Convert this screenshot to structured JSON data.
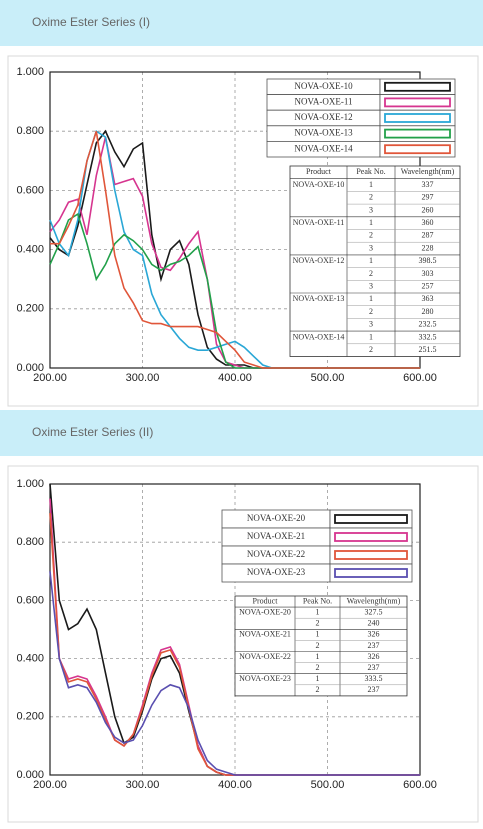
{
  "headers": [
    "Oxime Ester Series (I)",
    "Oxime Ester Series (II)"
  ],
  "chart_data": [
    {
      "type": "line",
      "x": [
        200,
        210,
        220,
        230,
        240,
        250,
        260,
        270,
        280,
        290,
        300,
        310,
        320,
        330,
        340,
        350,
        360,
        370,
        380,
        390,
        400,
        410,
        420,
        430,
        440,
        450,
        500,
        550,
        600
      ],
      "xlim": [
        200,
        600
      ],
      "ylim": [
        0,
        1
      ],
      "xticks": [
        {
          "value": 200,
          "label": "200.00"
        },
        {
          "value": 300,
          "label": "300.00"
        },
        {
          "value": 400,
          "label": "400.00"
        },
        {
          "value": 500,
          "label": "500.00"
        },
        {
          "value": 600,
          "label": "600.00"
        }
      ],
      "yticks": [
        {
          "value": 0,
          "label": "0.000"
        },
        {
          "value": 0.2,
          "label": "0.200"
        },
        {
          "value": 0.4,
          "label": "0.400"
        },
        {
          "value": 0.6,
          "label": "0.600"
        },
        {
          "value": 0.8,
          "label": "0.800"
        },
        {
          "value": 1,
          "label": "1.000"
        }
      ],
      "grid": true,
      "series": [
        {
          "name": "NOVA-OXE-10",
          "color": "#1a1a1a",
          "values": [
            0.44,
            0.4,
            0.38,
            0.48,
            0.62,
            0.76,
            0.8,
            0.73,
            0.68,
            0.74,
            0.76,
            0.45,
            0.3,
            0.4,
            0.43,
            0.35,
            0.18,
            0.07,
            0.03,
            0.01,
            0.01,
            0.01,
            0,
            0,
            0,
            0,
            0,
            0,
            0
          ]
        },
        {
          "name": "NOVA-OXE-11",
          "color": "#d6358f",
          "values": [
            0.46,
            0.5,
            0.56,
            0.57,
            0.45,
            0.65,
            0.78,
            0.62,
            0.63,
            0.64,
            0.58,
            0.42,
            0.34,
            0.33,
            0.37,
            0.42,
            0.46,
            0.3,
            0.08,
            0.02,
            0.01,
            0,
            0,
            0,
            0,
            0,
            0,
            0,
            0
          ]
        },
        {
          "name": "NOVA-OXE-12",
          "color": "#2aa7d6",
          "values": [
            0.5,
            0.42,
            0.38,
            0.5,
            0.7,
            0.8,
            0.78,
            0.6,
            0.46,
            0.4,
            0.38,
            0.25,
            0.18,
            0.14,
            0.1,
            0.07,
            0.06,
            0.06,
            0.07,
            0.08,
            0.09,
            0.07,
            0.04,
            0.01,
            0,
            0,
            0,
            0,
            0
          ]
        },
        {
          "name": "NOVA-OXE-13",
          "color": "#22a04a",
          "values": [
            0.35,
            0.42,
            0.5,
            0.52,
            0.42,
            0.3,
            0.35,
            0.42,
            0.45,
            0.43,
            0.4,
            0.35,
            0.33,
            0.35,
            0.36,
            0.38,
            0.41,
            0.3,
            0.12,
            0.02,
            0,
            0,
            0,
            0,
            0,
            0,
            0,
            0,
            0
          ]
        },
        {
          "name": "NOVA-OXE-14",
          "color": "#e0563a",
          "values": [
            0.42,
            0.42,
            0.48,
            0.55,
            0.7,
            0.8,
            0.6,
            0.38,
            0.27,
            0.22,
            0.16,
            0.15,
            0.15,
            0.14,
            0.14,
            0.14,
            0.14,
            0.13,
            0.12,
            0.09,
            0.06,
            0.02,
            0.01,
            0,
            0,
            0,
            0,
            0,
            0
          ]
        }
      ],
      "table": {
        "columns": [
          "Product",
          "Peak No.",
          "Wavelength(nm)"
        ],
        "groups": [
          {
            "product": "NOVA-OXE-10",
            "peaks": [
              {
                "no": 1,
                "wavelength": 337
              },
              {
                "no": 2,
                "wavelength": 297
              },
              {
                "no": 3,
                "wavelength": 260
              }
            ]
          },
          {
            "product": "NOVA-OXE-11",
            "peaks": [
              {
                "no": 1,
                "wavelength": 360
              },
              {
                "no": 2,
                "wavelength": 287
              },
              {
                "no": 3,
                "wavelength": 228
              }
            ]
          },
          {
            "product": "NOVA-OXE-12",
            "peaks": [
              {
                "no": 1,
                "wavelength": 398.5
              },
              {
                "no": 2,
                "wavelength": 303
              },
              {
                "no": 3,
                "wavelength": 257
              }
            ]
          },
          {
            "product": "NOVA-OXE-13",
            "peaks": [
              {
                "no": 1,
                "wavelength": 363
              },
              {
                "no": 2,
                "wavelength": 280
              },
              {
                "no": 3,
                "wavelength": 232.5
              }
            ]
          },
          {
            "product": "NOVA-OXE-14",
            "peaks": [
              {
                "no": 1,
                "wavelength": 332.5
              },
              {
                "no": 2,
                "wavelength": 251.5
              }
            ]
          }
        ]
      }
    },
    {
      "type": "line",
      "x": [
        200,
        210,
        220,
        230,
        240,
        250,
        260,
        270,
        280,
        290,
        300,
        310,
        320,
        330,
        340,
        350,
        360,
        370,
        380,
        390,
        400,
        450,
        500,
        550,
        600
      ],
      "xlim": [
        200,
        600
      ],
      "ylim": [
        0,
        1
      ],
      "xticks": [
        {
          "value": 200,
          "label": "200.00"
        },
        {
          "value": 300,
          "label": "300.00"
        },
        {
          "value": 400,
          "label": "400.00"
        },
        {
          "value": 500,
          "label": "500.00"
        },
        {
          "value": 600,
          "label": "600.00"
        }
      ],
      "yticks": [
        {
          "value": 0,
          "label": "0.000"
        },
        {
          "value": 0.2,
          "label": "0.200"
        },
        {
          "value": 0.4,
          "label": "0.400"
        },
        {
          "value": 0.6,
          "label": "0.600"
        },
        {
          "value": 0.8,
          "label": "0.800"
        },
        {
          "value": 1,
          "label": "1.000"
        }
      ],
      "grid": true,
      "series": [
        {
          "name": "NOVA-OXE-20",
          "color": "#1a1a1a",
          "values": [
            1.0,
            0.6,
            0.5,
            0.52,
            0.57,
            0.5,
            0.35,
            0.2,
            0.11,
            0.13,
            0.22,
            0.33,
            0.4,
            0.41,
            0.35,
            0.22,
            0.1,
            0.03,
            0.01,
            0,
            0,
            0,
            0,
            0,
            0
          ]
        },
        {
          "name": "NOVA-OXE-21",
          "color": "#d6358f",
          "values": [
            0.95,
            0.4,
            0.33,
            0.34,
            0.33,
            0.27,
            0.2,
            0.12,
            0.1,
            0.14,
            0.24,
            0.35,
            0.43,
            0.44,
            0.38,
            0.24,
            0.1,
            0.03,
            0.01,
            0,
            0,
            0,
            0,
            0,
            0
          ]
        },
        {
          "name": "NOVA-OXE-22",
          "color": "#e0563a",
          "values": [
            0.9,
            0.4,
            0.32,
            0.33,
            0.32,
            0.26,
            0.19,
            0.12,
            0.1,
            0.14,
            0.23,
            0.34,
            0.42,
            0.43,
            0.37,
            0.23,
            0.09,
            0.03,
            0.01,
            0,
            0,
            0,
            0,
            0,
            0
          ]
        },
        {
          "name": "NOVA-OXE-23",
          "color": "#5a4fb0",
          "values": [
            0.7,
            0.4,
            0.3,
            0.31,
            0.3,
            0.25,
            0.18,
            0.13,
            0.11,
            0.12,
            0.17,
            0.24,
            0.29,
            0.31,
            0.3,
            0.23,
            0.12,
            0.05,
            0.02,
            0.01,
            0,
            0,
            0,
            0,
            0
          ]
        }
      ],
      "table": {
        "columns": [
          "Product",
          "Peak No.",
          "Wavelength(nm)"
        ],
        "groups": [
          {
            "product": "NOVA-OXE-20",
            "peaks": [
              {
                "no": 1,
                "wavelength": 327.5
              },
              {
                "no": 2,
                "wavelength": 240
              }
            ]
          },
          {
            "product": "NOVA-OXE-21",
            "peaks": [
              {
                "no": 1,
                "wavelength": 326
              },
              {
                "no": 2,
                "wavelength": 237
              }
            ]
          },
          {
            "product": "NOVA-OXE-22",
            "peaks": [
              {
                "no": 1,
                "wavelength": 326
              },
              {
                "no": 2,
                "wavelength": 237
              }
            ]
          },
          {
            "product": "NOVA-OXE-23",
            "peaks": [
              {
                "no": 1,
                "wavelength": 333.5
              },
              {
                "no": 2,
                "wavelength": 237
              }
            ]
          }
        ]
      }
    }
  ]
}
